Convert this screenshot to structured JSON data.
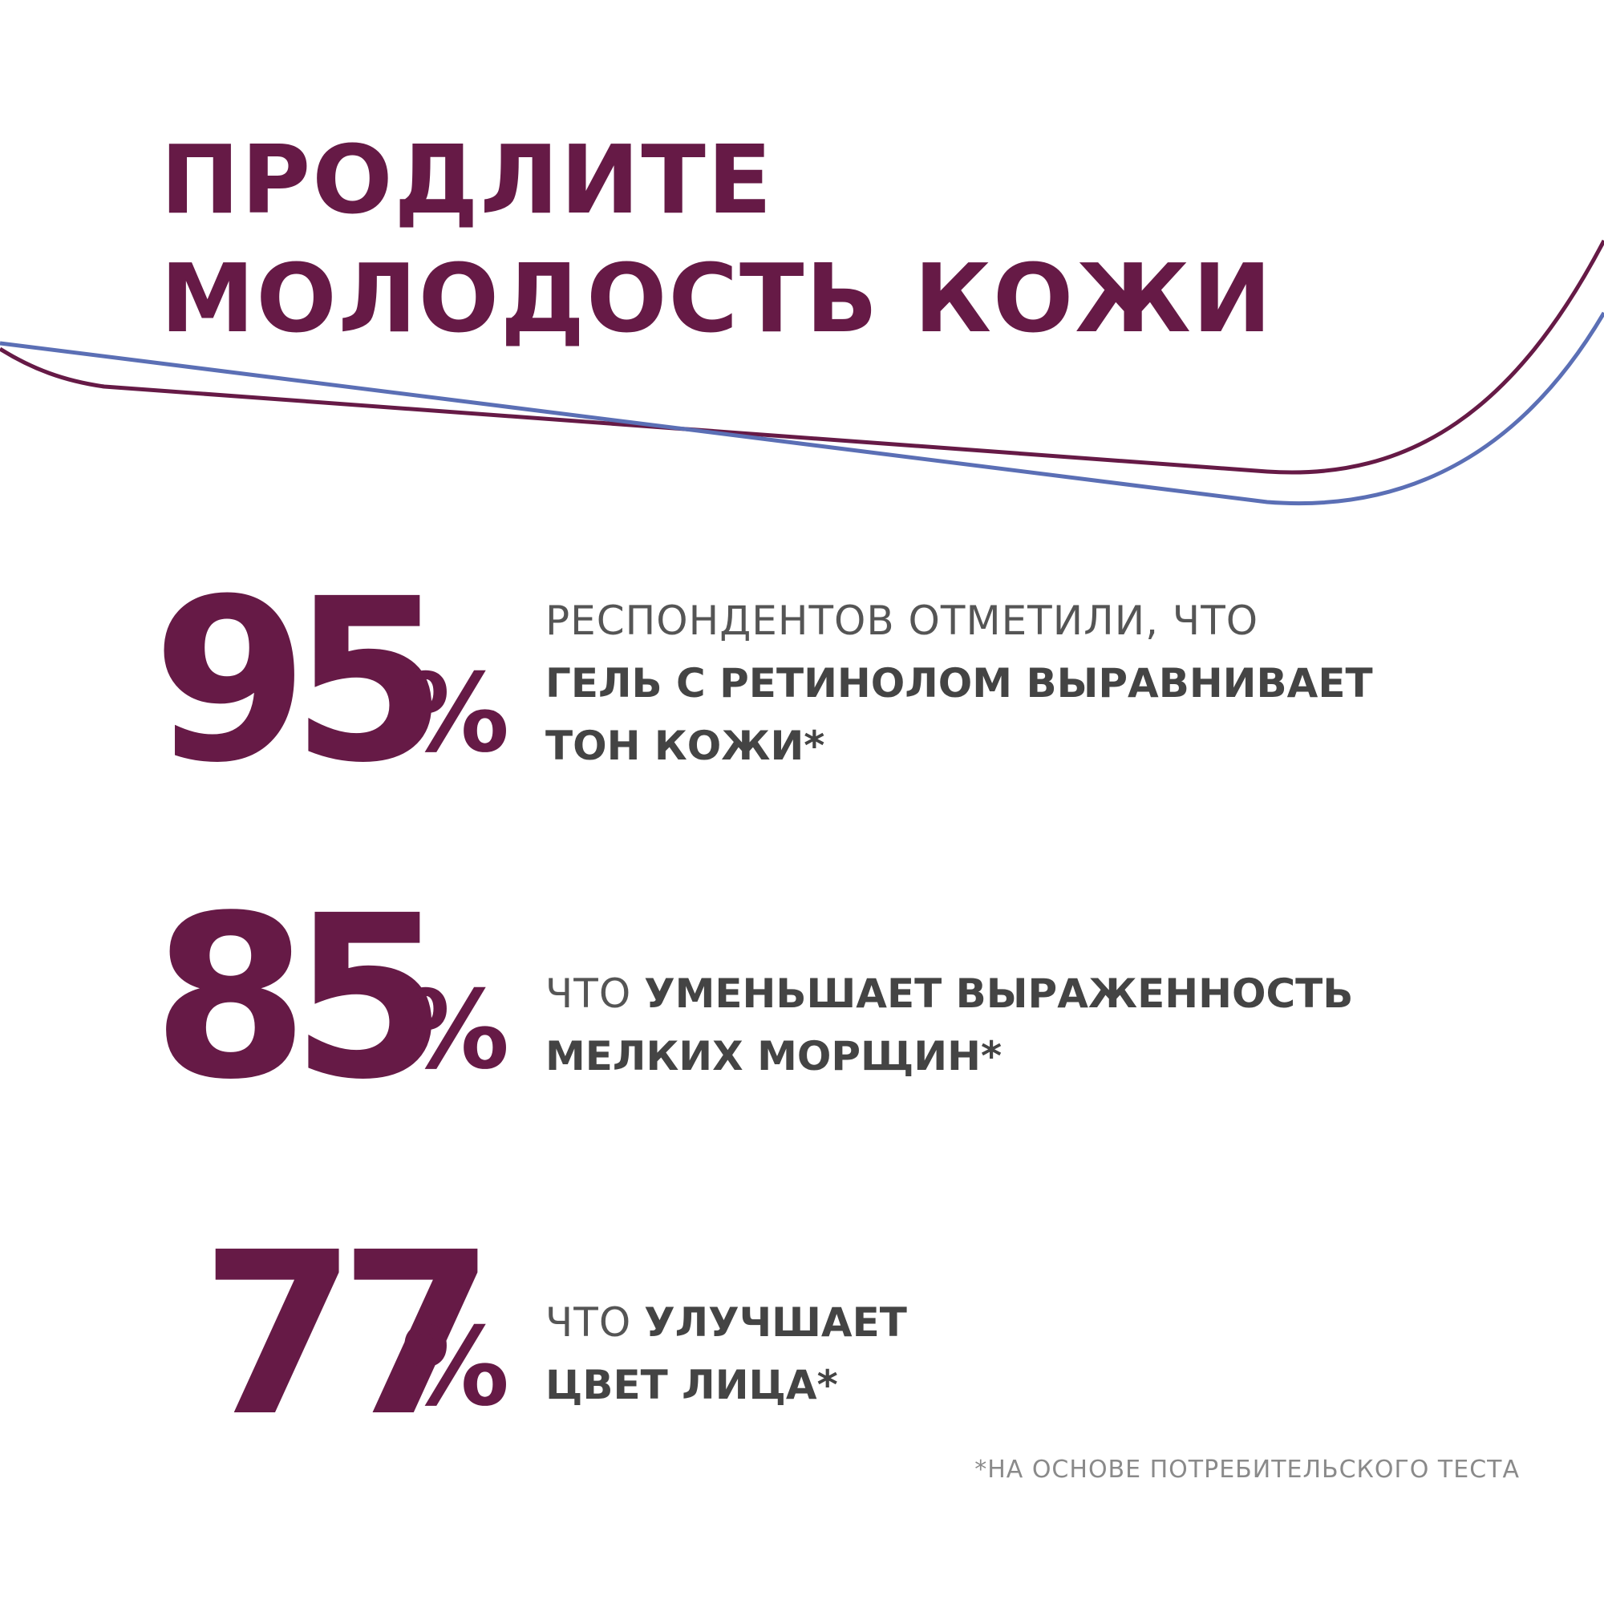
{
  "headline": {
    "line1": "ПРОДЛИТЕ",
    "line2": "МОЛОДОСТЬ КОЖИ"
  },
  "colors": {
    "accent": "#661a46",
    "line_blue": "#5b6fb5",
    "text_gray": "#4a4a4a"
  },
  "stats": [
    {
      "value": "95",
      "unit": "%",
      "text_regular": "РЕСПОНДЕНТОВ ОТМЕТИЛИ, ЧТО",
      "text_bold_1": "ГЕЛЬ С РЕТИНОЛОМ ВЫРАВНИВАЕТ",
      "text_bold_2": "ТОН КОЖИ*"
    },
    {
      "value": "85",
      "unit": "%",
      "text_regular": "ЧТО",
      "text_bold_1": "УМЕНЬШАЕТ ВЫРАЖЕННОСТЬ",
      "text_bold_2": "МЕЛКИХ МОРЩИН*"
    },
    {
      "value": "77",
      "unit": "%",
      "text_regular": "ЧТО",
      "text_bold_1": "УЛУЧШАЕТ",
      "text_bold_2": "ЦВЕТ ЛИЦА*"
    }
  ],
  "footnote": "*НА ОСНОВЕ ПОТРЕБИТЕЛЬСКОГО ТЕСТА"
}
